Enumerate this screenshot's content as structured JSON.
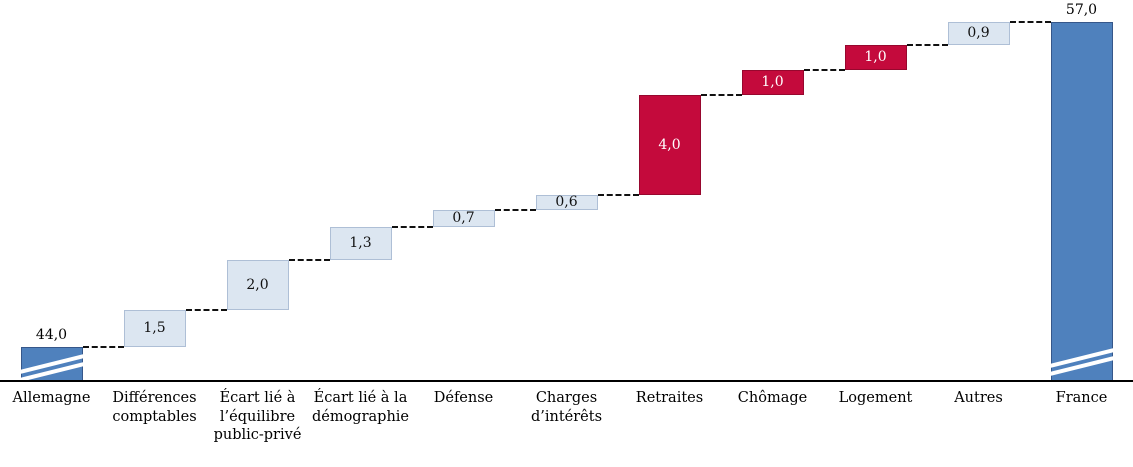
{
  "chart_data": {
    "type": "waterfall",
    "title": "",
    "axis_break": true,
    "value_axis_visible": false,
    "grid": false,
    "legend": "none",
    "start": {
      "label": "Allemagne",
      "value": 44.0,
      "display": "44,0",
      "role": "anchor"
    },
    "end": {
      "label": "France",
      "value": 57.0,
      "display": "57,0",
      "role": "anchor"
    },
    "steps": [
      {
        "label": "Différences\ncomptables",
        "value": 1.5,
        "display": "1,5",
        "color": "light"
      },
      {
        "label": "Écart lié à\nl’équilibre\npublic-privé",
        "value": 2.0,
        "display": "2,0",
        "color": "light"
      },
      {
        "label": "Écart lié à la\ndémographie",
        "value": 1.3,
        "display": "1,3",
        "color": "light"
      },
      {
        "label": "Défense",
        "value": 0.7,
        "display": "0,7",
        "color": "light"
      },
      {
        "label": "Charges\nd’intérêts",
        "value": 0.6,
        "display": "0,6",
        "color": "light"
      },
      {
        "label": "Retraites",
        "value": 4.0,
        "display": "4,0",
        "color": "red"
      },
      {
        "label": "Chômage",
        "value": 1.0,
        "display": "1,0",
        "color": "red"
      },
      {
        "label": "Logement",
        "value": 1.0,
        "display": "1,0",
        "color": "red"
      },
      {
        "label": "Autres",
        "value": 0.9,
        "display": "0,9",
        "color": "light"
      }
    ],
    "cumulative": [
      44.0,
      45.5,
      47.5,
      48.8,
      49.5,
      50.1,
      54.1,
      55.1,
      56.1,
      57.0
    ],
    "colors": {
      "anchor": "#4f81bd",
      "anchor_border": "#36578a",
      "light": "#dce6f1",
      "light_border": "#aebfd6",
      "red": "#c40a3c",
      "red_text": "#ffffff",
      "connector": "#111111"
    }
  }
}
